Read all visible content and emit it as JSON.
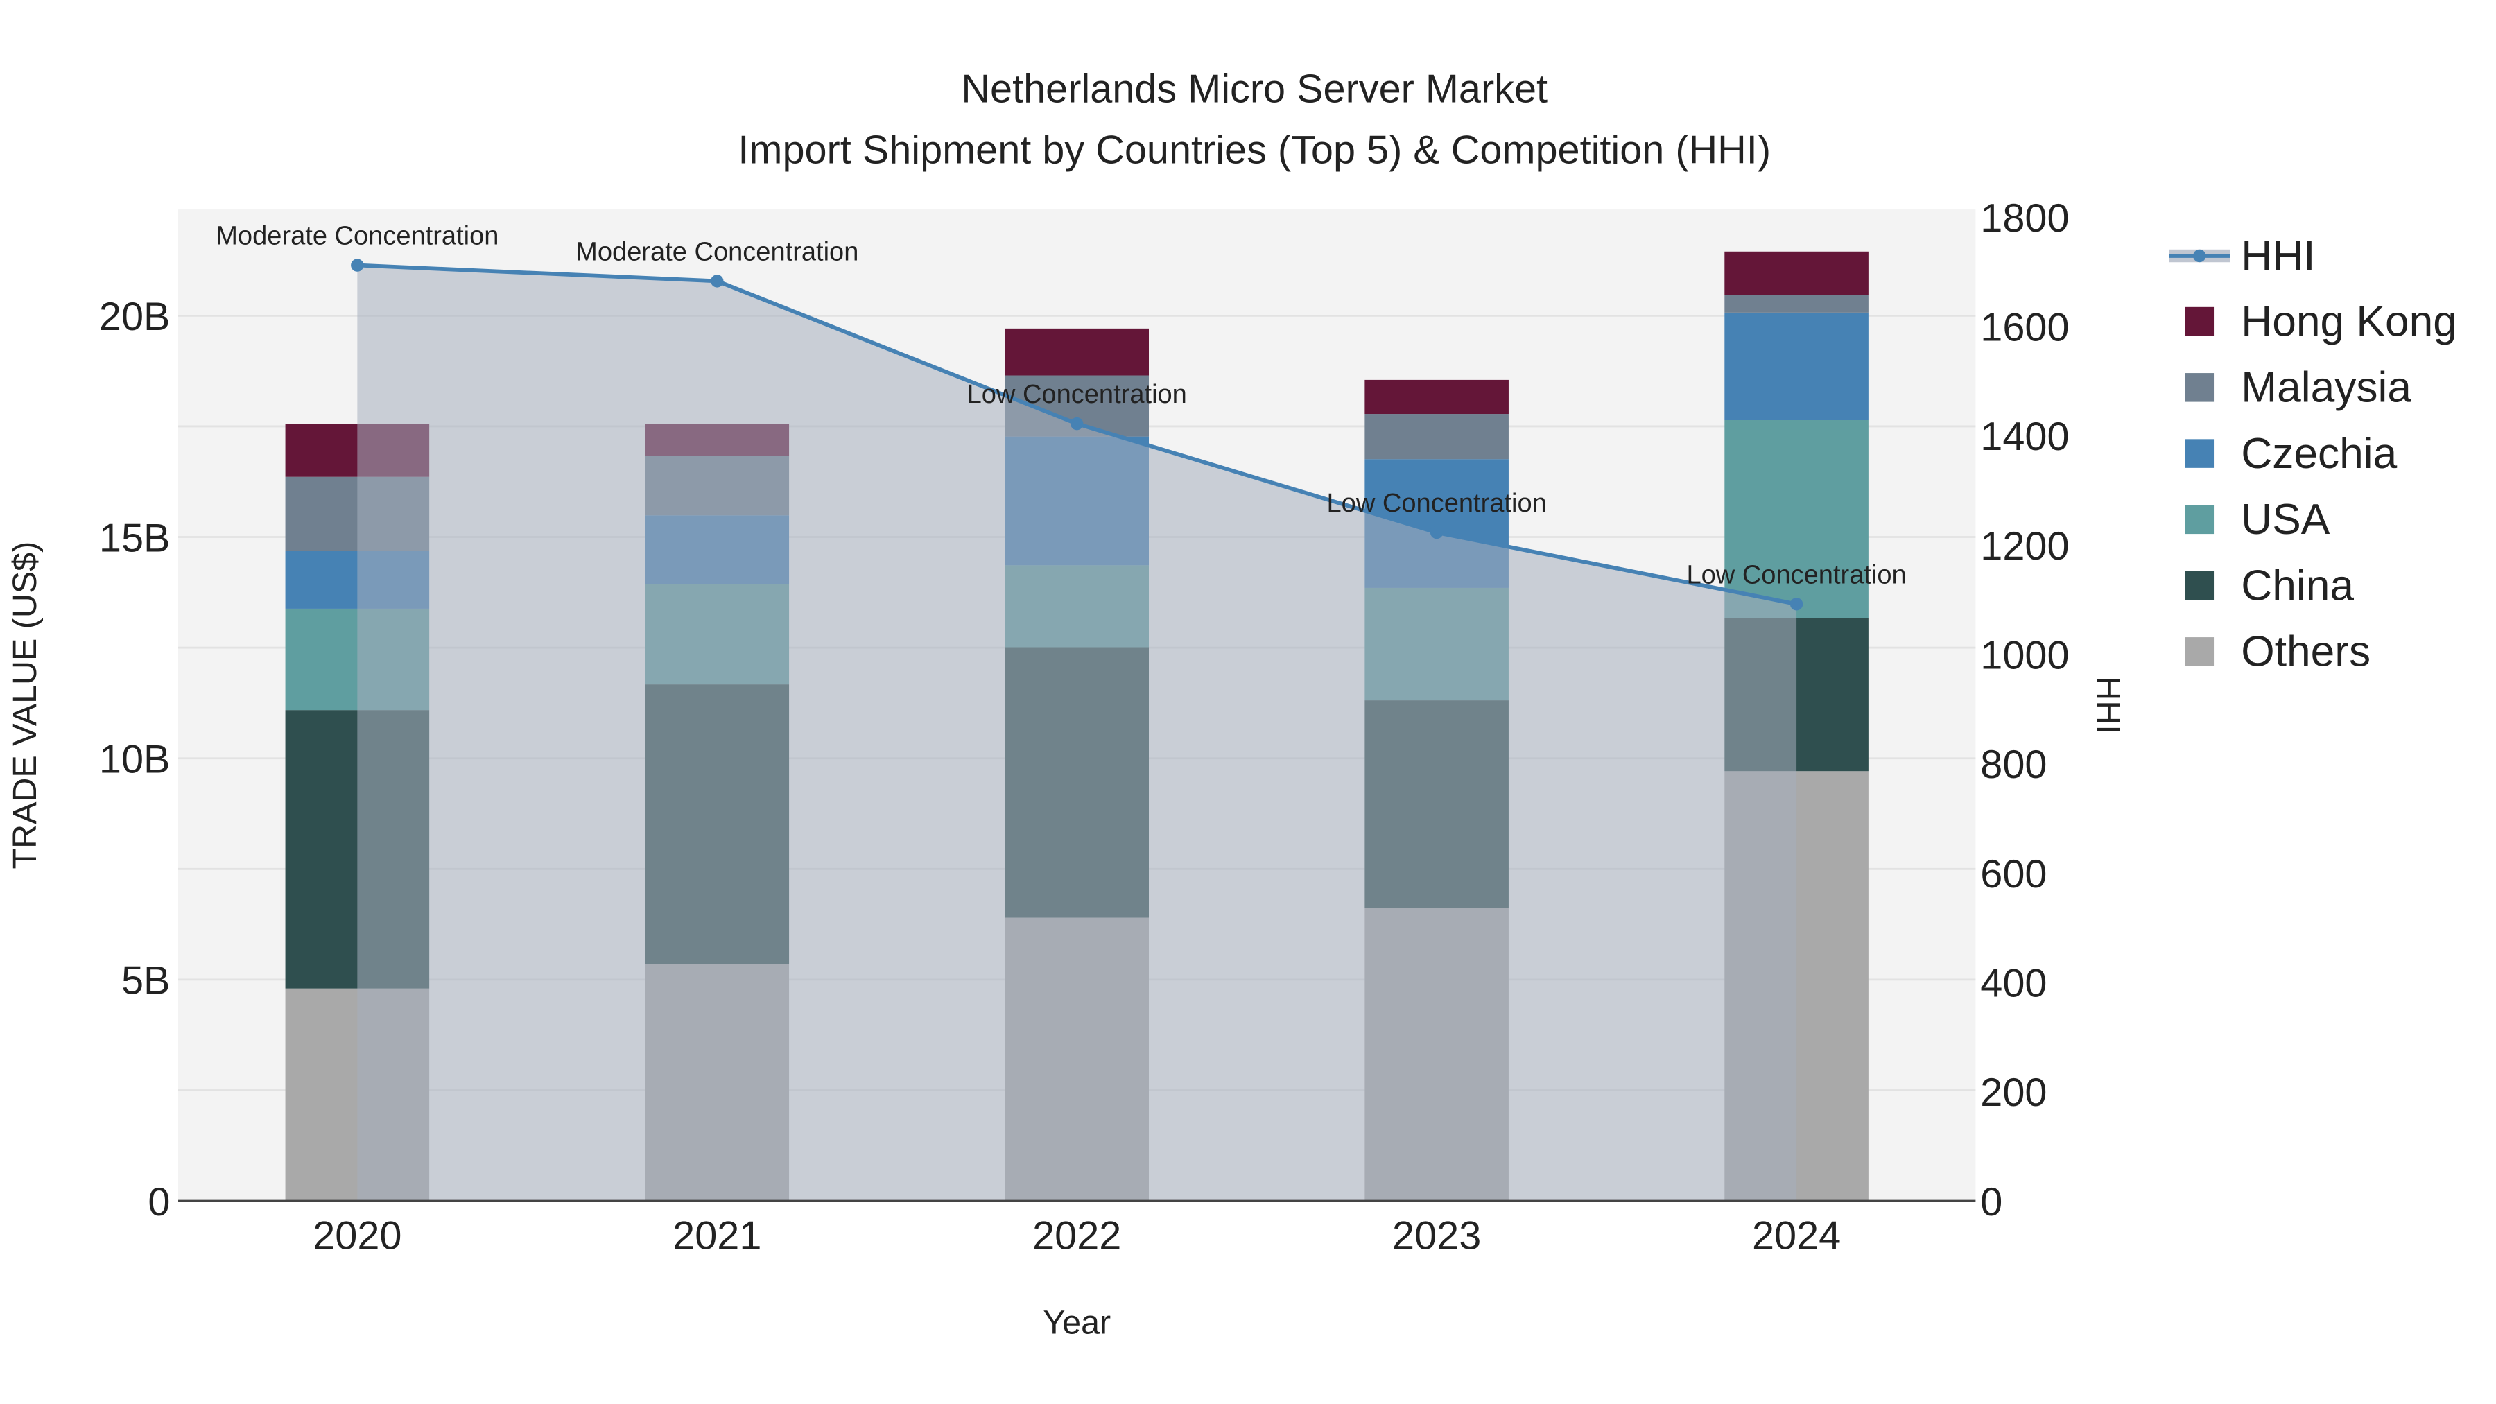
{
  "chart_data": {
    "type": "bar",
    "title": "Netherlands Micro Server Market",
    "subtitle": "Import Shipment by Countries (Top 5) & Competition (HHI)",
    "xlabel": "Year",
    "ylabel": "TRADE VALUE (US$)",
    "y2label": "HHI",
    "categories": [
      "2020",
      "2021",
      "2022",
      "2023",
      "2024"
    ],
    "ylim": [
      0,
      22.4
    ],
    "y2lim": [
      0,
      1814
    ],
    "yticks": [
      {
        "v": 0,
        "label": "0"
      },
      {
        "v": 5,
        "label": "5B"
      },
      {
        "v": 10,
        "label": "10B"
      },
      {
        "v": 15,
        "label": "15B"
      },
      {
        "v": 20,
        "label": "20B"
      }
    ],
    "y2ticks": [
      0,
      200,
      400,
      600,
      800,
      1000,
      1200,
      1400,
      1600,
      1800
    ],
    "units": "billion US$",
    "series": [
      {
        "name": "Others",
        "color": "#a9a9a9",
        "values": [
          4.8,
          5.35,
          6.4,
          6.62,
          9.71
        ]
      },
      {
        "name": "China",
        "color": "#2f4f4f",
        "values": [
          6.29,
          6.32,
          6.11,
          4.69,
          3.45
        ]
      },
      {
        "name": "USA",
        "color": "#5f9ea0",
        "values": [
          2.29,
          2.26,
          1.85,
          2.54,
          4.48
        ]
      },
      {
        "name": "Czechia",
        "color": "#4682b4",
        "values": [
          1.31,
          1.56,
          2.91,
          2.91,
          2.43
        ]
      },
      {
        "name": "Malaysia",
        "color": "#708090",
        "values": [
          1.67,
          1.35,
          1.38,
          1.02,
          0.4
        ]
      },
      {
        "name": "Hong Kong",
        "color": "#641638",
        "values": [
          1.2,
          0.72,
          1.06,
          0.77,
          0.98
        ]
      }
    ],
    "hhi": {
      "name": "HHI",
      "color": "#4682b4",
      "values": [
        1712,
        1683,
        1422,
        1223,
        1092
      ],
      "annotations": [
        "Moderate Concentration",
        "Moderate Concentration",
        "Low Concentration",
        "Low Concentration",
        "Low Concentration"
      ]
    },
    "legend": [
      "HHI",
      "Hong Kong",
      "Malaysia",
      "Czechia",
      "USA",
      "China",
      "Others"
    ],
    "legend_position": "right",
    "grid": true
  }
}
